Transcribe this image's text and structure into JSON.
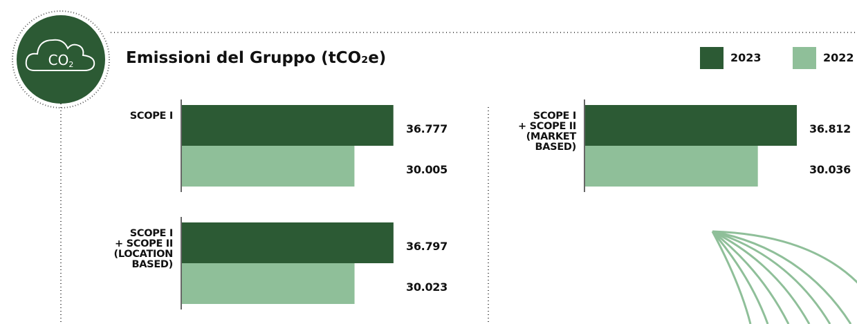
{
  "chart_data": {
    "type": "bar",
    "orientation": "horizontal",
    "title": "Emissioni del Gruppo (tCO₂e)",
    "icon": {
      "text": "CO",
      "subscript": "2"
    },
    "categories": [
      "SCOPE I",
      "SCOPE I\n+ SCOPE II\n(LOCATION\nBASED)",
      "SCOPE I\n+ SCOPE II\n(MARKET\nBASED)"
    ],
    "series": [
      {
        "name": "2023",
        "color": "#2c5a34",
        "values": [
          36777,
          36797,
          36812
        ],
        "value_labels": [
          "36.777",
          "36.797",
          "36.812"
        ]
      },
      {
        "name": "2022",
        "color": "#8fbf99",
        "values": [
          30005,
          30023,
          30036
        ],
        "value_labels": [
          "30.005",
          "30.023",
          "30.036"
        ]
      }
    ]
  }
}
